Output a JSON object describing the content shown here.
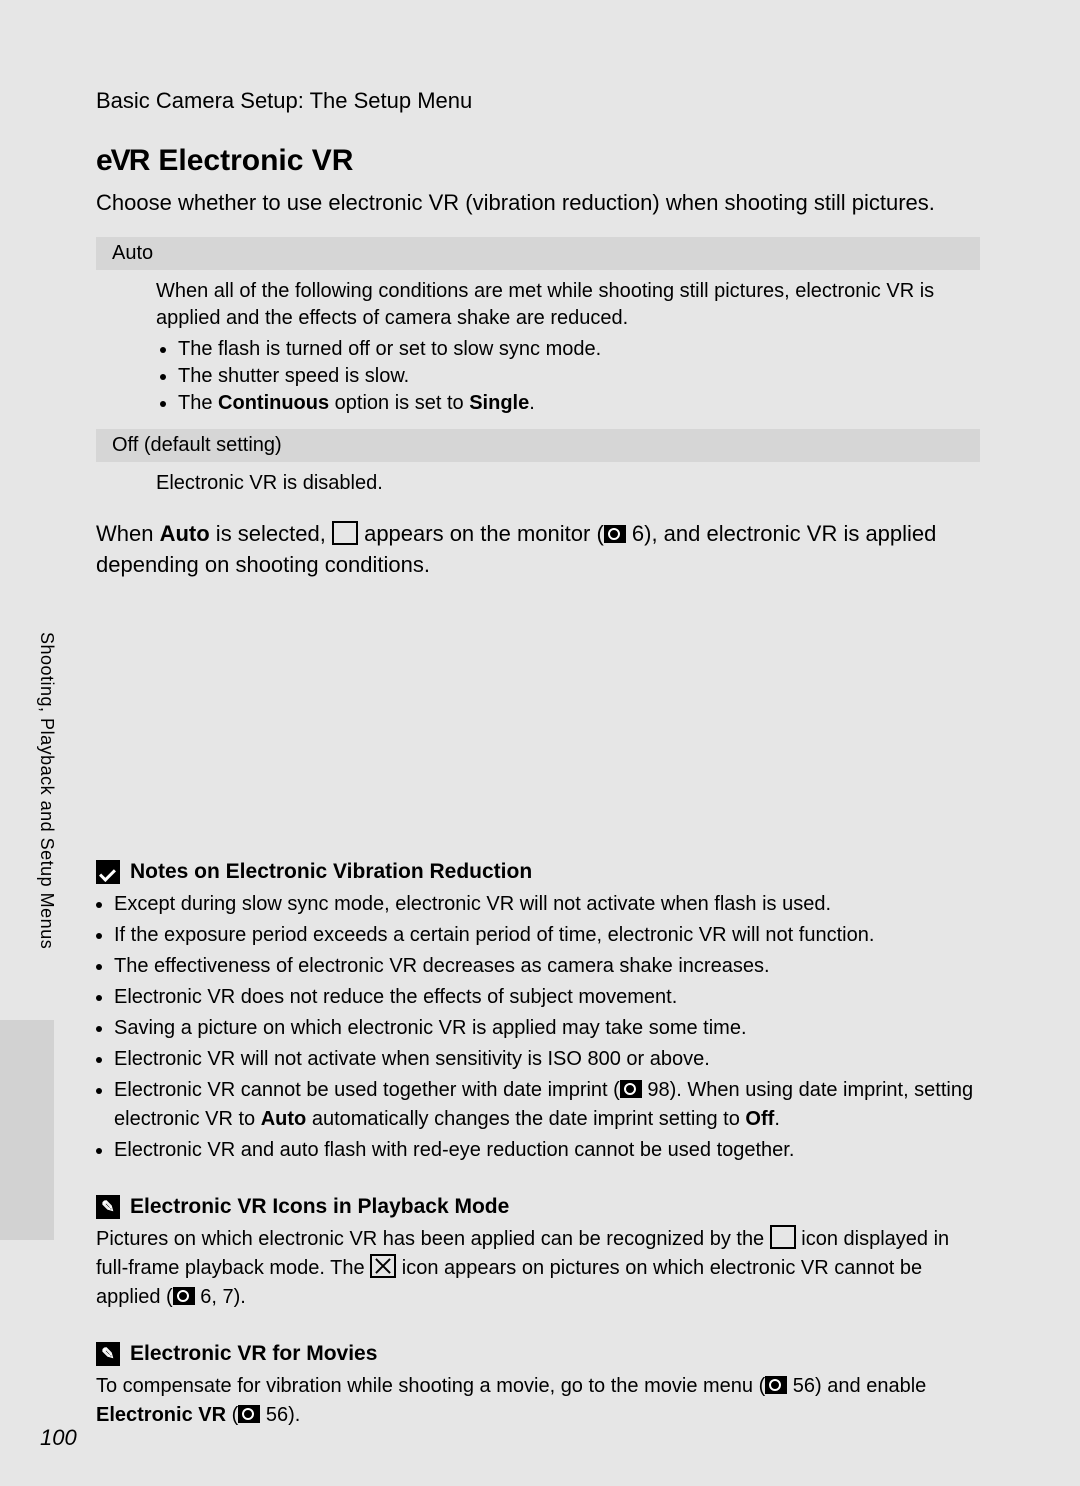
{
  "colors": {
    "page_bg": "#e6e6e6",
    "option_bg": "#d6d6d6",
    "side_block_bg": "#d2d2d2",
    "text": "#000000"
  },
  "typography": {
    "body_fontsize_pt": 15,
    "title_fontsize_pt": 22,
    "note_title_fontsize_pt": 15,
    "note_body_fontsize_pt": 14,
    "font_family": "Arial-like sans-serif"
  },
  "header": {
    "breadcrumb": "Basic Camera Setup: The Setup Menu"
  },
  "section1": {
    "icon_label": "eVR",
    "title": "Electronic VR",
    "intro": "Choose whether to use electronic VR (vibration reduction) when shooting still pictures.",
    "options": [
      {
        "label": "Auto",
        "body_intro": "When all of the following conditions are met while shooting still pictures, electronic VR is applied and the effects of camera shake are reduced.",
        "bullets_pre": [
          "The flash is turned off or set to slow sync mode.",
          "The shutter speed is slow."
        ],
        "bullet3_prefix": "The ",
        "bullet3_bold1": "Continuous",
        "bullet3_mid": " option is set to ",
        "bullet3_bold2": "Single",
        "bullet3_suffix": "."
      },
      {
        "label": "Off (default setting)",
        "body_intro": "Electronic VR is disabled."
      }
    ],
    "after_pre": "When ",
    "after_bold": "Auto",
    "after_mid1": " is selected, ",
    "after_mid2": " appears on the monitor (",
    "after_ref1": " 6), and electronic VR is applied depending on shooting conditions."
  },
  "notes1": {
    "title": "Notes on Electronic Vibration Reduction",
    "items_simple": [
      "Except during slow sync mode, electronic VR will not activate when flash is used.",
      "If the exposure period exceeds a certain period of time, electronic VR will not function.",
      "The effectiveness of electronic VR decreases as camera shake increases.",
      "Electronic VR does not reduce the effects of subject movement.",
      "Saving a picture on which electronic VR is applied may take some time.",
      "Electronic VR will not activate when sensitivity is ISO 800 or above."
    ],
    "item7_pre": "Electronic VR cannot be used together with date imprint (",
    "item7_ref": " 98). When using date imprint, setting electronic VR to ",
    "item7_b1": "Auto",
    "item7_mid": " automatically changes the date imprint setting to ",
    "item7_b2": "Off",
    "item7_suffix": ".",
    "item8": "Electronic VR and auto flash with red-eye reduction cannot be used together."
  },
  "notes2": {
    "title": "Electronic VR Icons in Playback Mode",
    "para_pre": "Pictures on which electronic VR has been applied can be recognized by the ",
    "para_mid1": " icon displayed in full-frame playback mode. The ",
    "para_mid2": " icon appears on pictures on which electronic VR cannot be applied (",
    "para_ref": " 6, 7)."
  },
  "notes3": {
    "title": "Electronic VR for Movies",
    "para_pre": "To compensate for vibration while shooting a movie, go to the movie menu (",
    "para_ref1": " 56) and enable ",
    "para_bold": "Electronic VR",
    "para_open": " (",
    "para_ref2": " 56)."
  },
  "side": {
    "tab": "Shooting, Playback and Setup Menus"
  },
  "page_number": "100"
}
